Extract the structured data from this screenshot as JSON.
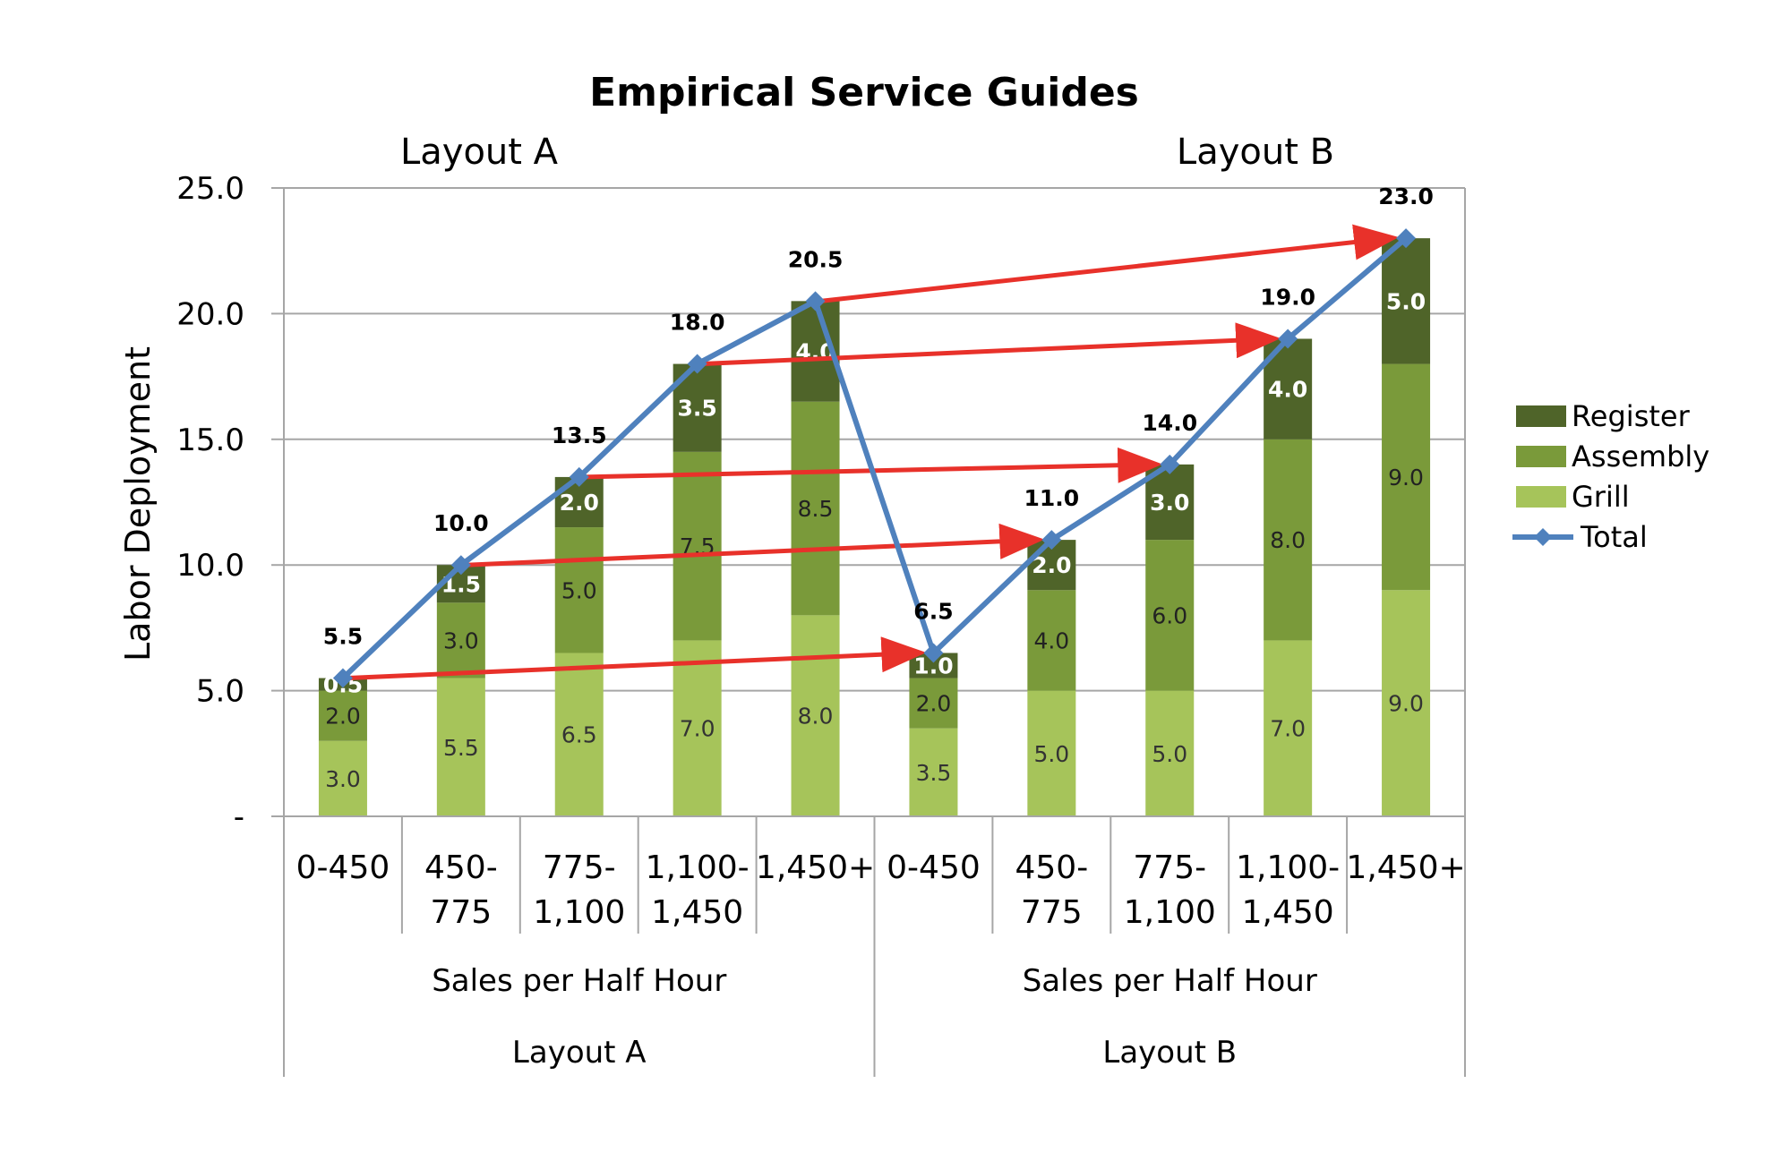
{
  "chart_data": {
    "type": "bar",
    "title": "Empirical Service Guides",
    "ylabel": "Labor Deployment",
    "ylim": [
      0,
      25
    ],
    "yticks": [
      "-",
      "5.0",
      "10.0",
      "15.0",
      "20.0",
      "25.0"
    ],
    "grid": true,
    "legend_position": "right",
    "groups": [
      {
        "name": "Layout A",
        "top_label": "Layout A",
        "axis_label": "Sales per Half Hour",
        "categories": [
          [
            "0-450"
          ],
          [
            "450-",
            "775"
          ],
          [
            "775-",
            "1,100"
          ],
          [
            "1,100-",
            "1,450"
          ],
          [
            "1,450+"
          ]
        ]
      },
      {
        "name": "Layout B",
        "top_label": "Layout B",
        "axis_label": "Sales per Half Hour",
        "categories": [
          [
            "0-450"
          ],
          [
            "450-",
            "775"
          ],
          [
            "775-",
            "1,100"
          ],
          [
            "1,100-",
            "1,450"
          ],
          [
            "1,450+"
          ]
        ]
      }
    ],
    "series": [
      {
        "name": "Grill",
        "kind": "bar",
        "color": "#a6c45a",
        "label_color": "#333333",
        "values": [
          3.0,
          5.5,
          6.5,
          7.0,
          8.0,
          3.5,
          5.0,
          5.0,
          7.0,
          9.0
        ],
        "labels": [
          "3.0",
          "5.5",
          "6.5",
          "7.0",
          "8.0",
          "3.5",
          "5.0",
          "5.0",
          "7.0",
          "9.0"
        ]
      },
      {
        "name": "Assembly",
        "kind": "bar",
        "color": "#7a9a3a",
        "label_color": "#222222",
        "values": [
          2.0,
          3.0,
          5.0,
          7.5,
          8.5,
          2.0,
          4.0,
          6.0,
          8.0,
          9.0
        ],
        "labels": [
          "2.0",
          "3.0",
          "5.0",
          "7.5",
          "8.5",
          "2.0",
          "4.0",
          "6.0",
          "8.0",
          "9.0"
        ]
      },
      {
        "name": "Register",
        "kind": "bar",
        "color": "#4f6429",
        "label_color": "#ffffff",
        "values": [
          0.5,
          1.5,
          2.0,
          3.5,
          4.0,
          1.0,
          2.0,
          3.0,
          4.0,
          5.0
        ],
        "labels": [
          "0.5",
          "1.5",
          "2.0",
          "3.5",
          "4.0",
          "1.0",
          "2.0",
          "3.0",
          "4.0",
          "5.0"
        ]
      },
      {
        "name": "Total",
        "kind": "line",
        "color": "#4f81bd",
        "values": [
          5.5,
          10.0,
          13.5,
          18.0,
          20.5,
          6.5,
          11.0,
          14.0,
          19.0,
          23.0
        ],
        "labels": [
          "5.5",
          "10.0",
          "13.5",
          "18.0",
          "20.5",
          "6.5",
          "11.0",
          "14.0",
          "19.0",
          "23.0"
        ]
      }
    ],
    "arrows": {
      "color": "#e8312a",
      "pairs": [
        [
          0,
          5
        ],
        [
          1,
          6
        ],
        [
          2,
          7
        ],
        [
          3,
          8
        ],
        [
          4,
          9
        ]
      ]
    },
    "legend_order": [
      "Register",
      "Assembly",
      "Grill",
      "Total"
    ]
  }
}
